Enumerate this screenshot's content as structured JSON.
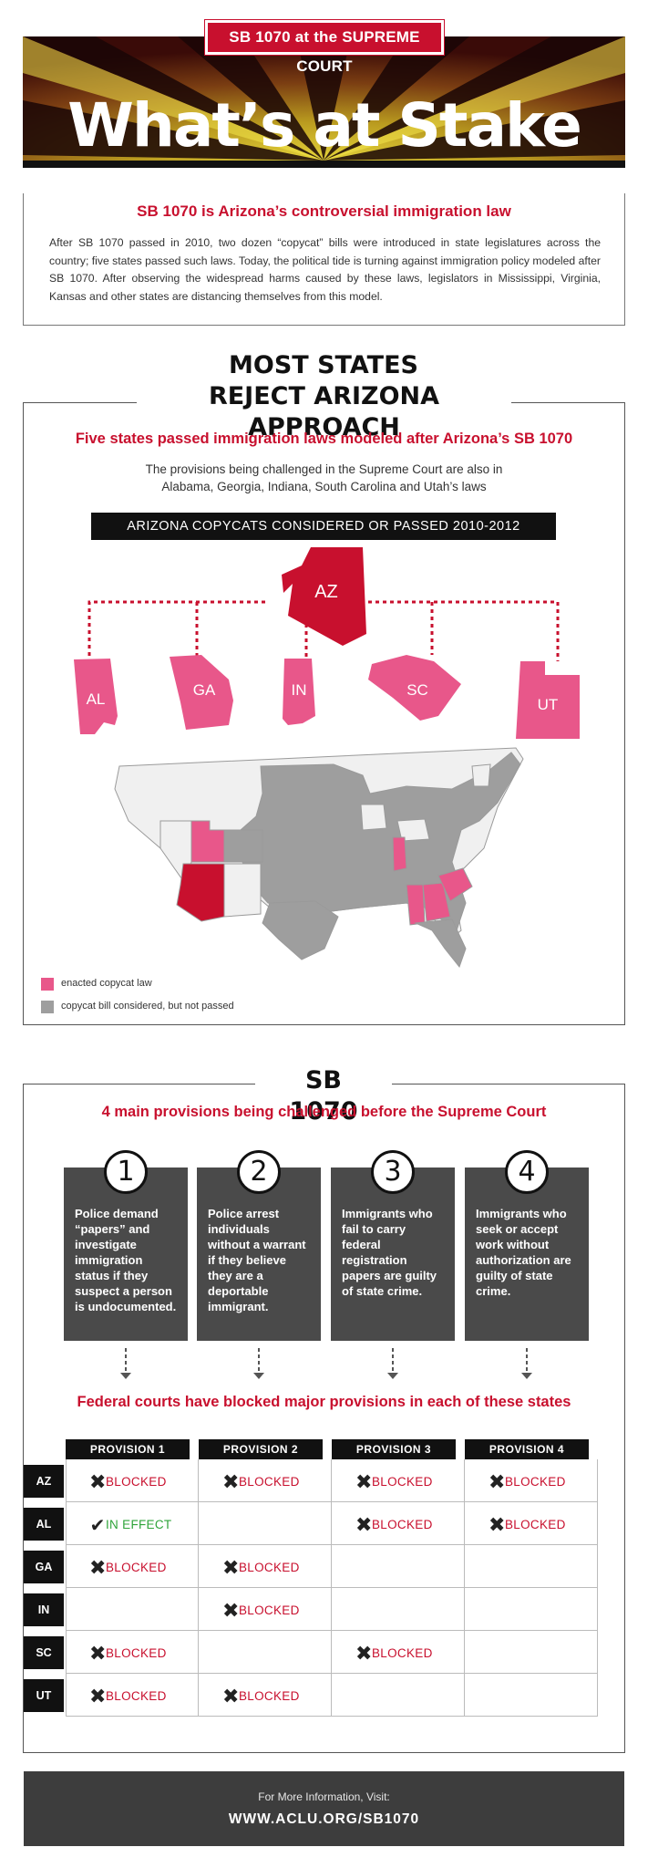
{
  "header": {
    "tag": "SB 1070 at the SUPREME COURT",
    "title": "What’s at Stake"
  },
  "intro": {
    "title": "SB 1070 is Arizona’s controversial immigration law",
    "text": "After SB 1070 passed in 2010, two dozen “copycat” bills were introduced in state legislatures across the country; five states passed such laws. Today, the political tide is turning against immigration policy modeled after SB 1070. After observing the widespread harms caused by these laws, legislators in Mississippi, Virginia, Kansas and other states are distancing themselves from this model."
  },
  "section1": {
    "heading_line1": "MOST STATES",
    "heading_line2": "REJECT ARIZONA APPROACH",
    "subtitle": "Five states passed immigration laws modeled after Arizona’s SB 1070",
    "desc_line1": "The provisions being challenged in the Supreme Court are also in",
    "desc_line2": "Alabama, Georgia, Indiana, South Carolina and Utah’s laws",
    "bar_label": "ARIZONA COPYCATS CONSIDERED OR PASSED 2010-2012",
    "copycats": {
      "source": "AZ",
      "states": [
        "AL",
        "GA",
        "IN",
        "SC",
        "UT"
      ]
    },
    "legend": [
      {
        "label": "enacted copycat law",
        "color": "#e8578a"
      },
      {
        "label": "copycat bill considered, but not passed",
        "color": "#9e9e9e"
      }
    ],
    "colors": {
      "arizona": "#c8102e",
      "enacted": "#e8578a",
      "considered": "#9e9e9e",
      "none": "#f0f0f0"
    }
  },
  "section2": {
    "heading": "SB 1070",
    "subtitle": "4 main provisions being challenged before the Supreme Court",
    "provisions": [
      {
        "num": "1",
        "text": " Police demand “papers” and investigate immigration status if they suspect a person is undocumented."
      },
      {
        "num": "2",
        "text": "Police arrest individuals without a warrant if they believe they are a deportable immigrant."
      },
      {
        "num": "3",
        "text": "Immigrants who fail to carry federal registration papers are guilty of state crime."
      },
      {
        "num": "4",
        "text": "Immigrants who seek or accept work without authorization are guilty of state crime."
      }
    ],
    "subtitle2": "Federal courts have blocked major provisions in each of these states",
    "columns": [
      "PROVISION 1",
      "PROVISION  2",
      "PROVISION 3",
      "PROVISION 4"
    ],
    "rows": [
      {
        "state": "AZ",
        "cells": [
          "BLOCKED",
          "BLOCKED",
          "BLOCKED",
          "BLOCKED"
        ]
      },
      {
        "state": "AL",
        "cells": [
          "IN EFFECT",
          "",
          "BLOCKED",
          "BLOCKED"
        ]
      },
      {
        "state": "GA",
        "cells": [
          "BLOCKED",
          "BLOCKED",
          "",
          ""
        ]
      },
      {
        "state": "IN",
        "cells": [
          "",
          "BLOCKED",
          "",
          ""
        ]
      },
      {
        "state": "SC",
        "cells": [
          "BLOCKED",
          "",
          "BLOCKED",
          ""
        ]
      },
      {
        "state": "UT",
        "cells": [
          "BLOCKED",
          "BLOCKED",
          "",
          ""
        ]
      }
    ]
  },
  "footer": {
    "line1": "For More Information, Visit:",
    "line2": "WWW.ACLU.ORG/SB1070"
  }
}
